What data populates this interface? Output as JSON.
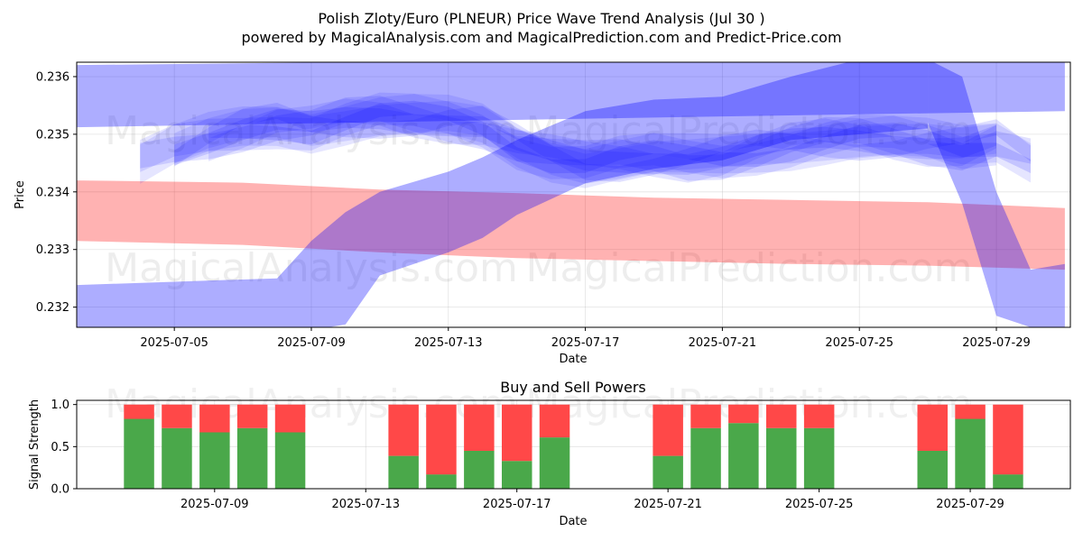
{
  "header": {
    "title": "Polish Zloty/Euro (PLNEUR) Price Wave Trend Analysis (Jul 30 )",
    "subtitle": "powered by MagicalAnalysis.com and MagicalPrediction.com and Predict-Price.com"
  },
  "watermarks": {
    "top_left": "MagicalAnalysis.com",
    "top_right": "MagicalPrediction.com",
    "mid_left": "MagicalAnalysis.com",
    "mid_right": "MagicalPrediction.com",
    "bottom_left": "MagicalAnalysis.com",
    "bottom_right": "MagicalPrediction.com"
  },
  "colors": {
    "wave_blue": "#0000ff",
    "band_red": "#ff0000",
    "buy_green": "#4aa84a",
    "sell_red": "#ff4848",
    "grid": "#b0b0b0"
  },
  "chart_data": [
    {
      "type": "area",
      "title": "",
      "xlabel": "Date",
      "ylabel": "Price",
      "xlim": [
        "2025-07-02",
        "2025-07-31"
      ],
      "ylim": [
        0.23165,
        0.23625
      ],
      "xticks": [
        "2025-07-05",
        "2025-07-09",
        "2025-07-13",
        "2025-07-17",
        "2025-07-21",
        "2025-07-25",
        "2025-07-29"
      ],
      "yticks": [
        0.232,
        0.233,
        0.234,
        0.235,
        0.236
      ],
      "ytick_labels": [
        "0.232",
        "0.233",
        "0.234",
        "0.235",
        "0.236"
      ],
      "grid": true,
      "red_band": {
        "x": [
          "2025-07-02",
          "2025-07-07",
          "2025-07-11",
          "2025-07-15",
          "2025-07-19",
          "2025-07-23",
          "2025-07-27",
          "2025-07-31"
        ],
        "upper": [
          0.2342,
          0.23416,
          0.23404,
          0.23398,
          0.2339,
          0.23386,
          0.23382,
          0.23372
        ],
        "lower": [
          0.23315,
          0.23308,
          0.23295,
          0.23285,
          0.2328,
          0.23275,
          0.23272,
          0.23265
        ]
      },
      "rising_band": {
        "x": [
          "2025-07-02",
          "2025-07-08",
          "2025-07-09",
          "2025-07-10",
          "2025-07-11",
          "2025-07-13",
          "2025-07-14",
          "2025-07-15",
          "2025-07-17",
          "2025-07-19",
          "2025-07-21",
          "2025-07-23",
          "2025-07-25",
          "2025-07-27"
        ],
        "upper": [
          0.23238,
          0.2325,
          0.23315,
          0.23365,
          0.234,
          0.23435,
          0.2346,
          0.2349,
          0.2354,
          0.2356,
          0.23565,
          0.236,
          0.2363,
          0.2363
        ],
        "lower": [
          0.2316,
          0.2316,
          0.2316,
          0.2317,
          0.23255,
          0.23295,
          0.2332,
          0.2336,
          0.23415,
          0.2344,
          0.23455,
          0.2349,
          0.235,
          0.2351
        ]
      },
      "falling_band": {
        "x": [
          "2025-07-27",
          "2025-07-28",
          "2025-07-29",
          "2025-07-30",
          "2025-07-31"
        ],
        "upper": [
          0.2363,
          0.236,
          0.234,
          0.23265,
          0.23275
        ],
        "lower": [
          0.2352,
          0.2338,
          0.23185,
          0.23165,
          0.23165
        ]
      },
      "top_band": {
        "x": [
          "2025-07-02",
          "2025-07-10",
          "2025-07-20",
          "2025-07-31"
        ],
        "upper": [
          0.2362,
          0.23625,
          0.23625,
          0.23625
        ],
        "lower": [
          0.23512,
          0.2352,
          0.2353,
          0.2354
        ]
      },
      "wave_center": {
        "x": [
          "2025-07-04",
          "2025-07-05",
          "2025-07-06",
          "2025-07-07",
          "2025-07-08",
          "2025-07-09",
          "2025-07-10",
          "2025-07-11",
          "2025-07-12",
          "2025-07-13",
          "2025-07-14",
          "2025-07-15",
          "2025-07-16",
          "2025-07-17",
          "2025-07-18",
          "2025-07-19",
          "2025-07-20",
          "2025-07-21",
          "2025-07-22",
          "2025-07-23",
          "2025-07-24",
          "2025-07-25",
          "2025-07-26",
          "2025-07-27",
          "2025-07-28",
          "2025-07-29",
          "2025-07-30"
        ],
        "values": [
          0.23448,
          0.23475,
          0.23495,
          0.2351,
          0.23518,
          0.2351,
          0.23522,
          0.2353,
          0.23528,
          0.23525,
          0.23515,
          0.23482,
          0.2346,
          0.23448,
          0.23455,
          0.2346,
          0.23458,
          0.23462,
          0.23472,
          0.2348,
          0.23488,
          0.23492,
          0.2349,
          0.23485,
          0.23478,
          0.2349,
          0.2346
        ]
      }
    },
    {
      "type": "bar",
      "title": "Buy and Sell Powers",
      "xlabel": "Date",
      "ylabel": "Signal Strength",
      "ylim": [
        0,
        1.05
      ],
      "yticks": [
        0.0,
        0.5,
        1.0
      ],
      "ytick_labels": [
        "0.0",
        "0.5",
        "1.0"
      ],
      "xticks": [
        "2025-07-09",
        "2025-07-13",
        "2025-07-17",
        "2025-07-21",
        "2025-07-25",
        "2025-07-29"
      ],
      "xlim": [
        "2025-07-05",
        "2025-07-31"
      ],
      "grid": true,
      "series": [
        {
          "name": "",
          "values": [
            0.83,
            0.72,
            0.67,
            0.72,
            0.67,
            0.39,
            0.17,
            0.45,
            0.33,
            0.61,
            0.39,
            0.72,
            0.78,
            0.72,
            0.72,
            0.45,
            0.83,
            0.17
          ]
        },
        {
          "name": "",
          "values": [
            0.17,
            0.28,
            0.33,
            0.28,
            0.33,
            0.61,
            0.83,
            0.55,
            0.67,
            0.39,
            0.61,
            0.28,
            0.22,
            0.28,
            0.28,
            0.55,
            0.17,
            0.83
          ]
        }
      ],
      "categories": [
        "2025-07-07",
        "2025-07-08",
        "2025-07-09",
        "2025-07-10",
        "2025-07-11",
        "2025-07-14",
        "2025-07-15",
        "2025-07-16",
        "2025-07-17",
        "2025-07-18",
        "2025-07-21",
        "2025-07-22",
        "2025-07-23",
        "2025-07-24",
        "2025-07-25",
        "2025-07-28",
        "2025-07-29",
        "2025-07-30"
      ]
    }
  ]
}
